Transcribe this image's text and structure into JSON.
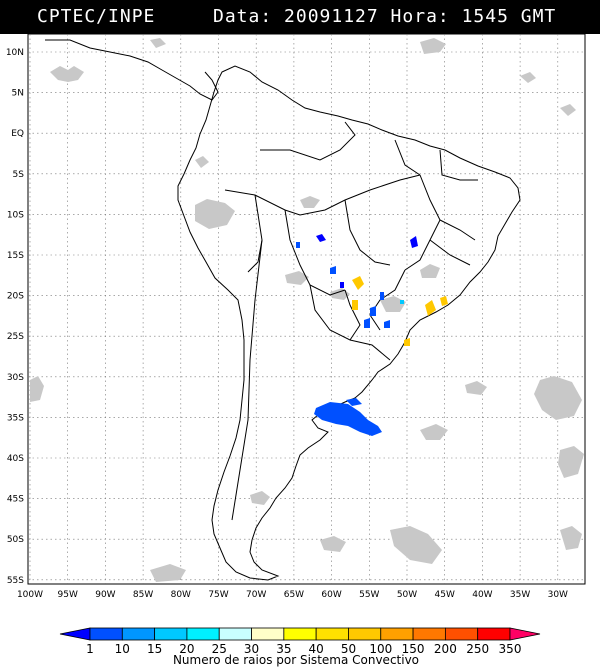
{
  "header": {
    "source": "CPTEC/INPE",
    "datetime_text": "Data: 20091127 Hora: 1545 GMT"
  },
  "map": {
    "lat_labels": [
      "10N",
      "5N",
      "EQ",
      "5S",
      "10S",
      "15S",
      "20S",
      "25S",
      "30S",
      "35S",
      "40S",
      "45S",
      "50S",
      "55S"
    ],
    "lon_labels": [
      "100W",
      "95W",
      "90W",
      "85W",
      "80W",
      "75W",
      "70W",
      "65W",
      "60W",
      "55W",
      "50W",
      "45W",
      "40W",
      "35W",
      "30W"
    ],
    "colors": {
      "cloud": "#c8c8c8",
      "land_outline": "#000000",
      "grid": "#555555"
    }
  },
  "legend": {
    "title": "Numero de raios por Sistema Convectivo",
    "tick_labels": [
      "1",
      "10",
      "15",
      "20",
      "25",
      "30",
      "35",
      "40",
      "50",
      "100",
      "150",
      "200",
      "250",
      "350"
    ],
    "colors": [
      "#0000ff",
      "#0050ff",
      "#0096ff",
      "#00c8ff",
      "#00f0ff",
      "#c8ffff",
      "#ffffc8",
      "#ffff00",
      "#ffe100",
      "#ffc800",
      "#ffa000",
      "#ff7800",
      "#ff5000",
      "#ff0000",
      "#ff0064"
    ]
  }
}
